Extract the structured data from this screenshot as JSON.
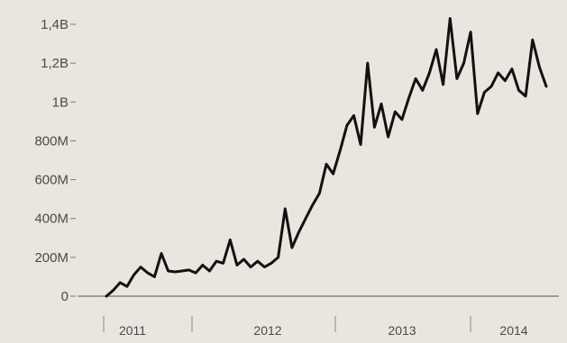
{
  "chart_data": {
    "type": "line",
    "title": "",
    "xlabel": "",
    "ylabel": "",
    "x_tick_labels": [
      "2011",
      "2012",
      "2013",
      "2014"
    ],
    "y_tick_labels": [
      "0",
      "200M",
      "400M",
      "600M",
      "800M",
      "1B",
      "1,2B",
      "1,4B"
    ],
    "y_tick_values": [
      0,
      200,
      400,
      600,
      800,
      1000,
      1200,
      1400
    ],
    "ylim": [
      0,
      1400
    ],
    "y_unit": "millions",
    "grid": false,
    "line_color": "#111111",
    "series": [
      {
        "x": [
          "2010-10-20",
          "2010-11-10",
          "2010-12-01",
          "2010-12-22",
          "2011-01-12",
          "2011-02-02",
          "2011-02-23",
          "2011-03-16",
          "2011-04-06",
          "2011-04-27",
          "2011-05-18",
          "2011-06-08",
          "2011-06-29",
          "2011-07-20",
          "2011-08-10",
          "2011-08-31",
          "2011-09-21",
          "2011-10-12",
          "2011-11-02",
          "2011-11-23",
          "2011-12-14",
          "2012-01-04",
          "2012-01-25",
          "2012-02-15",
          "2012-03-07",
          "2012-03-28",
          "2012-04-18",
          "2012-05-09",
          "2012-05-30",
          "2012-06-20",
          "2012-07-11",
          "2012-08-01",
          "2012-08-22",
          "2012-09-12",
          "2012-10-03",
          "2012-10-24",
          "2012-11-14",
          "2012-12-05",
          "2012-12-26",
          "2013-01-16",
          "2013-02-06",
          "2013-02-27",
          "2013-03-20",
          "2013-04-10",
          "2013-05-01",
          "2013-05-22",
          "2013-06-12",
          "2013-07-03",
          "2013-07-24",
          "2013-08-14",
          "2013-09-04",
          "2013-09-25",
          "2013-10-16",
          "2013-11-06",
          "2013-11-27",
          "2013-12-18",
          "2014-01-08",
          "2014-01-29",
          "2014-02-19",
          "2014-03-12",
          "2014-04-02",
          "2014-04-23",
          "2014-05-14",
          "2014-06-04",
          "2014-06-25"
        ],
        "y": [
          0,
          30,
          70,
          50,
          110,
          150,
          120,
          100,
          220,
          130,
          125,
          130,
          135,
          120,
          160,
          130,
          180,
          170,
          290,
          160,
          190,
          150,
          180,
          150,
          170,
          200,
          450,
          250,
          330,
          400,
          470,
          530,
          680,
          630,
          750,
          880,
          930,
          780,
          1200,
          870,
          990,
          820,
          950,
          910,
          1020,
          1120,
          1060,
          1150,
          1270,
          1090,
          1430,
          1120,
          1200,
          1360,
          940,
          1050,
          1080,
          1150,
          1110,
          1170,
          1060,
          1030,
          1320,
          1180,
          1080
        ]
      }
    ]
  }
}
